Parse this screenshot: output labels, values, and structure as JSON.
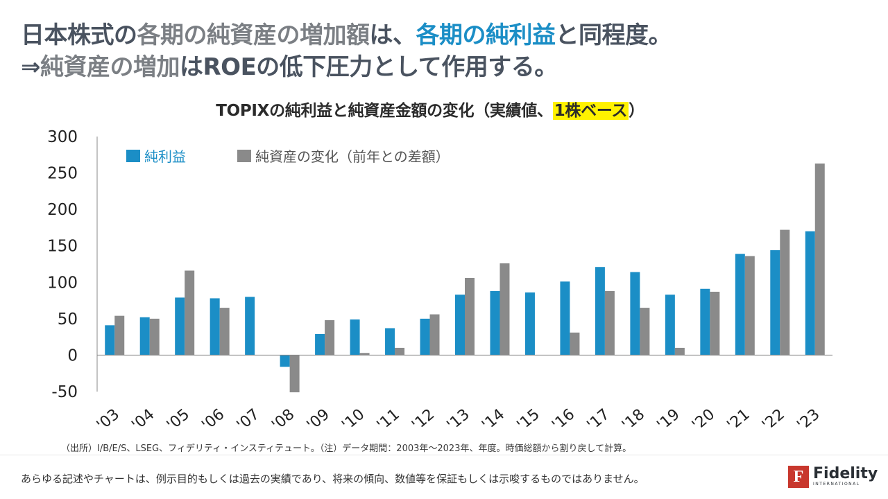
{
  "headline": {
    "line1": [
      {
        "text": "日本株式の",
        "style": "dark"
      },
      {
        "text": "各期の純資産の増加額",
        "style": "grey"
      },
      {
        "text": "は、",
        "style": "dark"
      },
      {
        "text": "各期の純利益",
        "style": "blue"
      },
      {
        "text": "と同程度。",
        "style": "dark"
      }
    ],
    "line2": [
      {
        "text": "⇒",
        "style": "dark"
      },
      {
        "text": "純資産の増加",
        "style": "grey"
      },
      {
        "text": "はROEの低下圧力として作用する。",
        "style": "dark"
      }
    ]
  },
  "chart_title": {
    "prefix": "TOPIXの純利益と純資産金額の変化（実績値、",
    "highlight": "1株ベース",
    "suffix": "）"
  },
  "chart_data": {
    "type": "bar",
    "title": "TOPIXの純利益と純資産金額の変化（実績値、1株ベース）",
    "xlabel": "",
    "ylabel": "",
    "ylim": [
      -50,
      300
    ],
    "yticks": [
      -50,
      0,
      50,
      100,
      150,
      200,
      250,
      300
    ],
    "grid": false,
    "legend_position": "top-left",
    "categories": [
      "'03",
      "'04",
      "'05",
      "'06",
      "'07",
      "'08",
      "'09",
      "'10",
      "'11",
      "'12",
      "'13",
      "'14",
      "'15",
      "'16",
      "'17",
      "'18",
      "'19",
      "'20",
      "'21",
      "'22",
      "'23"
    ],
    "series": [
      {
        "name": "純利益",
        "color": "#1b8ec6",
        "values": [
          41,
          52,
          79,
          78,
          80,
          -16,
          29,
          49,
          37,
          50,
          83,
          88,
          86,
          101,
          121,
          114,
          83,
          91,
          139,
          144,
          170
        ]
      },
      {
        "name": "純資産の変化（前年との差額）",
        "color": "#8a8a8a",
        "values": [
          54,
          50,
          116,
          65,
          0,
          -51,
          48,
          3,
          10,
          56,
          106,
          126,
          0,
          31,
          88,
          65,
          10,
          87,
          136,
          172,
          263
        ]
      }
    ]
  },
  "legend": {
    "net_income_label": "純利益",
    "net_income_color": "#1b8ec6",
    "net_assets_label": "純資産の変化（前年との差額）",
    "net_assets_color": "#8a8a8a"
  },
  "source_note": "（出所）I/B/E/S、LSEG、フィデリティ・インスティテュート。（注）データ期間：2003年～2023年、年度。時価総額から割り戻して計算。",
  "disclaimer": "あらゆる記述やチャートは、例示目的もしくは過去の実績であり、将来の傾向、数値等を保証もしくは示唆するものではありません。",
  "logo": {
    "mark": "F",
    "name": "Fidelity",
    "sub": "INTERNATIONAL",
    "color": "#c8372d"
  }
}
